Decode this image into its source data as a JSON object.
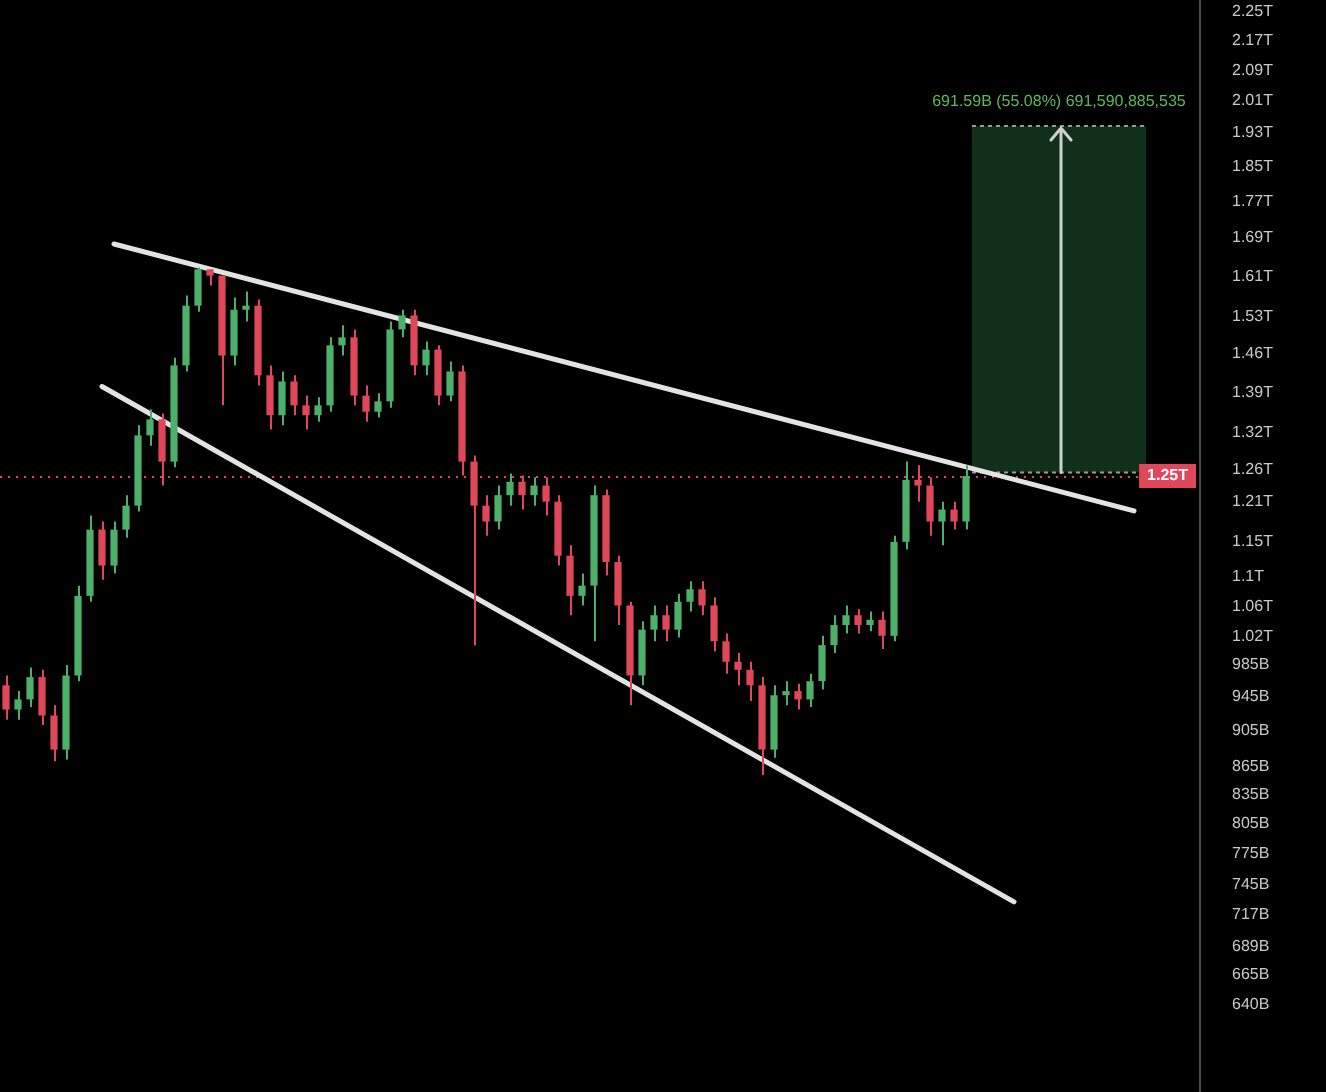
{
  "chart_data": {
    "type": "candlestick",
    "categories": [
      null,
      null,
      null,
      null,
      null,
      null,
      null,
      null,
      null,
      null,
      null,
      null,
      null,
      null,
      null,
      null,
      null,
      null,
      null,
      null,
      null,
      null,
      null,
      null,
      null,
      null,
      null,
      null,
      null,
      null,
      null,
      null,
      null,
      null,
      null,
      null,
      null,
      null,
      null,
      null,
      null,
      null,
      null,
      null,
      null,
      null,
      null,
      null,
      null,
      null,
      null,
      null,
      null,
      null,
      null,
      null,
      null,
      null,
      null,
      null,
      null,
      null,
      null,
      null,
      null,
      null,
      null,
      null,
      null,
      null,
      null,
      null,
      null,
      null,
      null,
      null,
      null,
      null,
      null,
      null,
      null,
      null,
      null,
      null,
      null,
      null,
      null,
      null,
      null,
      null,
      null,
      null,
      null,
      null,
      null,
      null,
      null,
      null,
      null,
      null
    ],
    "ohlc": [
      [
        959000000000,
        971000000000,
        918000000000,
        930000000000
      ],
      [
        930000000000,
        952000000000,
        918000000000,
        942000000000
      ],
      [
        942000000000,
        981000000000,
        933000000000,
        969000000000
      ],
      [
        969000000000,
        978000000000,
        912000000000,
        923000000000
      ],
      [
        923000000000,
        935000000000,
        871000000000,
        884000000000
      ],
      [
        884000000000,
        984000000000,
        873000000000,
        971000000000
      ],
      [
        971000000000,
        1088000000000,
        964000000000,
        1074000000000
      ],
      [
        1074000000000,
        1189000000000,
        1066000000000,
        1168000000000
      ],
      [
        1168000000000,
        1180000000000,
        1096000000000,
        1116000000000
      ],
      [
        1116000000000,
        1180000000000,
        1105000000000,
        1168000000000
      ],
      [
        1168000000000,
        1220000000000,
        1156000000000,
        1204000000000
      ],
      [
        1204000000000,
        1333000000000,
        1195000000000,
        1316000000000
      ],
      [
        1316000000000,
        1360000000000,
        1299000000000,
        1343000000000
      ],
      [
        1343000000000,
        1353000000000,
        1235000000000,
        1273000000000
      ],
      [
        1273000000000,
        1452000000000,
        1264000000000,
        1438000000000
      ],
      [
        1438000000000,
        1571000000000,
        1427000000000,
        1551000000000
      ],
      [
        1551000000000,
        1628000000000,
        1539000000000,
        1624000000000
      ],
      [
        1624000000000,
        1624000000000,
        1591000000000,
        1611000000000
      ],
      [
        1611000000000,
        1611000000000,
        1367000000000,
        1456000000000
      ],
      [
        1456000000000,
        1567000000000,
        1438000000000,
        1543000000000
      ],
      [
        1543000000000,
        1579000000000,
        1520000000000,
        1551000000000
      ],
      [
        1551000000000,
        1563000000000,
        1402000000000,
        1420000000000
      ],
      [
        1420000000000,
        1438000000000,
        1326000000000,
        1350000000000
      ],
      [
        1350000000000,
        1427000000000,
        1333000000000,
        1409000000000
      ],
      [
        1409000000000,
        1420000000000,
        1350000000000,
        1367000000000
      ],
      [
        1367000000000,
        1384000000000,
        1326000000000,
        1350000000000
      ],
      [
        1350000000000,
        1381000000000,
        1339000000000,
        1367000000000
      ],
      [
        1367000000000,
        1490000000000,
        1356000000000,
        1475000000000
      ],
      [
        1475000000000,
        1513000000000,
        1456000000000,
        1490000000000
      ],
      [
        1490000000000,
        1505000000000,
        1367000000000,
        1384000000000
      ],
      [
        1384000000000,
        1402000000000,
        1339000000000,
        1356000000000
      ],
      [
        1356000000000,
        1388000000000,
        1346000000000,
        1374000000000
      ],
      [
        1374000000000,
        1520000000000,
        1363000000000,
        1505000000000
      ],
      [
        1505000000000,
        1543000000000,
        1490000000000,
        1532000000000
      ],
      [
        1532000000000,
        1543000000000,
        1420000000000,
        1438000000000
      ],
      [
        1438000000000,
        1482000000000,
        1420000000000,
        1467000000000
      ],
      [
        1467000000000,
        1475000000000,
        1367000000000,
        1384000000000
      ],
      [
        1384000000000,
        1445000000000,
        1374000000000,
        1427000000000
      ],
      [
        1427000000000,
        1438000000000,
        1251000000000,
        1273000000000
      ],
      [
        1273000000000,
        1283000000000,
        1009000000000,
        1204000000000
      ],
      [
        1204000000000,
        1220000000000,
        1159000000000,
        1180000000000
      ],
      [
        1180000000000,
        1235000000000,
        1168000000000,
        1220000000000
      ],
      [
        1220000000000,
        1254000000000,
        1204000000000,
        1241000000000
      ],
      [
        1241000000000,
        1251000000000,
        1198000000000,
        1220000000000
      ],
      [
        1220000000000,
        1248000000000,
        1204000000000,
        1235000000000
      ],
      [
        1235000000000,
        1248000000000,
        1189000000000,
        1210000000000
      ],
      [
        1210000000000,
        1220000000000,
        1116000000000,
        1130000000000
      ],
      [
        1130000000000,
        1145000000000,
        1048000000000,
        1074000000000
      ],
      [
        1074000000000,
        1105000000000,
        1061000000000,
        1088000000000
      ],
      [
        1088000000000,
        1235000000000,
        1014000000000,
        1220000000000
      ],
      [
        1220000000000,
        1229000000000,
        1102000000000,
        1121000000000
      ],
      [
        1121000000000,
        1130000000000,
        1035000000000,
        1061000000000
      ],
      [
        1061000000000,
        1066000000000,
        935000000000,
        971000000000
      ],
      [
        971000000000,
        1040000000000,
        959000000000,
        1029000000000
      ],
      [
        1029000000000,
        1061000000000,
        1014000000000,
        1048000000000
      ],
      [
        1048000000000,
        1061000000000,
        1014000000000,
        1029000000000
      ],
      [
        1029000000000,
        1077000000000,
        1019000000000,
        1066000000000
      ],
      [
        1066000000000,
        1094000000000,
        1053000000000,
        1083000000000
      ],
      [
        1083000000000,
        1094000000000,
        1048000000000,
        1061000000000
      ],
      [
        1061000000000,
        1072000000000,
        1001000000000,
        1014000000000
      ],
      [
        1014000000000,
        1024000000000,
        973000000000,
        988000000000
      ],
      [
        988000000000,
        999000000000,
        959000000000,
        978000000000
      ],
      [
        978000000000,
        988000000000,
        940000000000,
        959000000000
      ],
      [
        959000000000,
        969000000000,
        856000000000,
        884000000000
      ],
      [
        884000000000,
        959000000000,
        875000000000,
        947000000000
      ],
      [
        947000000000,
        964000000000,
        935000000000,
        952000000000
      ],
      [
        952000000000,
        961000000000,
        930000000000,
        942000000000
      ],
      [
        942000000000,
        973000000000,
        933000000000,
        964000000000
      ],
      [
        964000000000,
        1021000000000,
        954000000000,
        1009000000000
      ],
      [
        1009000000000,
        1048000000000,
        999000000000,
        1035000000000
      ],
      [
        1035000000000,
        1061000000000,
        1024000000000,
        1048000000000
      ],
      [
        1048000000000,
        1056000000000,
        1024000000000,
        1035000000000
      ],
      [
        1035000000000,
        1053000000000,
        1027000000000,
        1042000000000
      ],
      [
        1042000000000,
        1053000000000,
        1004000000000,
        1021000000000
      ],
      [
        1021000000000,
        1159000000000,
        1014000000000,
        1150000000000
      ],
      [
        1150000000000,
        1273000000000,
        1139000000000,
        1244000000000
      ],
      [
        1244000000000,
        1267000000000,
        1210000000000,
        1235000000000
      ],
      [
        1235000000000,
        1248000000000,
        1159000000000,
        1180000000000
      ],
      [
        1180000000000,
        1210000000000,
        1145000000000,
        1198000000000
      ],
      [
        1198000000000,
        1210000000000,
        1168000000000,
        1180000000000
      ],
      [
        1180000000000,
        1267000000000,
        1168000000000,
        1250000000000
      ],
      null,
      null,
      null,
      null,
      null,
      null,
      null,
      null,
      null,
      null,
      null,
      null,
      null,
      null,
      null,
      null,
      null,
      null,
      null
    ],
    "colors": [
      "#e0475b",
      "#4caf6a",
      "#4caf6a",
      "#e0475b",
      "#e0475b",
      "#4caf6a",
      "#4caf6a",
      "#4caf6a",
      "#e0475b",
      "#4caf6a",
      "#4caf6a",
      "#4caf6a",
      "#4caf6a",
      "#e0475b",
      "#4caf6a",
      "#4caf6a",
      "#4caf6a",
      "#e0475b",
      "#e0475b",
      "#4caf6a",
      "#4caf6a",
      "#e0475b",
      "#e0475b",
      "#4caf6a",
      "#e0475b",
      "#e0475b",
      "#4caf6a",
      "#4caf6a",
      "#4caf6a",
      "#e0475b",
      "#e0475b",
      "#4caf6a",
      "#4caf6a",
      "#4caf6a",
      "#e0475b",
      "#4caf6a",
      "#e0475b",
      "#4caf6a",
      "#e0475b",
      "#e0475b",
      "#e0475b",
      "#4caf6a",
      "#4caf6a",
      "#e0475b",
      "#4caf6a",
      "#e0475b",
      "#e0475b",
      "#e0475b",
      "#4caf6a",
      "#4caf6a",
      "#e0475b",
      "#e0475b",
      "#e0475b",
      "#4caf6a",
      "#4caf6a",
      "#e0475b",
      "#4caf6a",
      "#4caf6a",
      "#e0475b",
      "#e0475b",
      "#e0475b",
      "#e0475b",
      "#e0475b",
      "#e0475b",
      "#4caf6a",
      "#4caf6a",
      "#e0475b",
      "#4caf6a",
      "#4caf6a",
      "#4caf6a",
      "#4caf6a",
      "#e0475b",
      "#4caf6a",
      "#e0475b",
      "#4caf6a",
      "#4caf6a",
      "#e0475b",
      "#e0475b",
      "#4caf6a",
      "#e0475b",
      "#4caf6a",
      null,
      null,
      null,
      null,
      null,
      null,
      null,
      null,
      null,
      null,
      null,
      null,
      null,
      null,
      null,
      null,
      null,
      null,
      null
    ],
    "series": [
      {
        "type": "line",
        "color": "#e3e3e3",
        "values": [
          null,
          null,
          null,
          null,
          null,
          null,
          null,
          null,
          null,
          1677000000000,
          null,
          null,
          null,
          null,
          null,
          null,
          null,
          null,
          null,
          null,
          null,
          null,
          null,
          null,
          null,
          null,
          null,
          null,
          null,
          null,
          null,
          null,
          null,
          null,
          null,
          null,
          null,
          null,
          null,
          null,
          null,
          null,
          null,
          null,
          null,
          null,
          null,
          null,
          null,
          null,
          null,
          null,
          null,
          null,
          null,
          null,
          null,
          null,
          null,
          null,
          null,
          null,
          null,
          null,
          null,
          null,
          null,
          null,
          null,
          null,
          null,
          null,
          null,
          null,
          null,
          null,
          null,
          null,
          null,
          null,
          null,
          null,
          null,
          null,
          null,
          null,
          null,
          null,
          null,
          null,
          null,
          null,
          null,
          null,
          1196000000000,
          null,
          null,
          null,
          null,
          null
        ]
      },
      {
        "type": "line",
        "color": "#e3e3e3",
        "values": [
          null,
          null,
          null,
          null,
          null,
          null,
          null,
          null,
          1400000000000,
          null,
          null,
          null,
          null,
          null,
          null,
          null,
          null,
          null,
          null,
          null,
          null,
          null,
          null,
          null,
          null,
          null,
          null,
          null,
          null,
          null,
          null,
          null,
          null,
          null,
          null,
          null,
          null,
          null,
          null,
          null,
          null,
          null,
          null,
          null,
          null,
          null,
          null,
          null,
          null,
          null,
          null,
          null,
          null,
          null,
          null,
          null,
          null,
          null,
          null,
          null,
          null,
          null,
          null,
          null,
          null,
          null,
          null,
          null,
          null,
          null,
          null,
          null,
          null,
          null,
          null,
          null,
          null,
          null,
          null,
          null,
          null,
          null,
          null,
          null,
          729000000000,
          null,
          null,
          null,
          null,
          null,
          null,
          null,
          null,
          null,
          null,
          null,
          null,
          null,
          null,
          null
        ]
      }
    ],
    "marker": "none",
    "log": true,
    "ylim": [
      573000000000,
      2284000000000
    ],
    "yticks": [
      {
        "value": 2250000000000,
        "label": "2.25T"
      },
      {
        "value": 2170000000000,
        "label": "2.17T"
      },
      {
        "value": 2090000000000,
        "label": "2.09T"
      },
      {
        "value": 2010000000000,
        "label": "2.01T"
      },
      {
        "value": 1930000000000,
        "label": "1.93T"
      },
      {
        "value": 1850000000000,
        "label": "1.85T"
      },
      {
        "value": 1770000000000,
        "label": "1.77T"
      },
      {
        "value": 1690000000000,
        "label": "1.69T"
      },
      {
        "value": 1610000000000,
        "label": "1.61T"
      },
      {
        "value": 1530000000000,
        "label": "1.53T"
      },
      {
        "value": 1460000000000,
        "label": "1.46T"
      },
      {
        "value": 1390000000000,
        "label": "1.39T"
      },
      {
        "value": 1320000000000,
        "label": "1.32T"
      },
      {
        "value": 1260000000000,
        "label": "1.26T"
      },
      {
        "value": 1210000000000,
        "label": "1.21T"
      },
      {
        "value": 1150000000000,
        "label": "1.15T"
      },
      {
        "value": 1100000000000,
        "label": "1.1T"
      },
      {
        "value": 1060000000000,
        "label": "1.06T"
      },
      {
        "value": 1020000000000,
        "label": "1.02T"
      },
      {
        "value": 985000000000,
        "label": "985B"
      },
      {
        "value": 945000000000,
        "label": "945B"
      },
      {
        "value": 905000000000,
        "label": "905B"
      },
      {
        "value": 865000000000,
        "label": "865B"
      },
      {
        "value": 835000000000,
        "label": "835B"
      },
      {
        "value": 805000000000,
        "label": "805B"
      },
      {
        "value": 775000000000,
        "label": "775B"
      },
      {
        "value": 745000000000,
        "label": "745B"
      },
      {
        "value": 717000000000,
        "label": "717B"
      },
      {
        "value": 689000000000,
        "label": "689B"
      },
      {
        "value": 665000000000,
        "label": "665B"
      },
      {
        "value": 640000000000,
        "label": "640B"
      }
    ],
    "tick_labels": "y",
    "ref_lines": [
      {
        "axis": "y",
        "value": 1250000000000,
        "label": "1.25T",
        "color": "#e0475b",
        "line_style": "dotted"
      }
    ],
    "bands": [
      {
        "axis": "y",
        "from": 1255600000000,
        "to": 1947200000000,
        "label": "691.59B (55.08%) 691,590,885,535",
        "color": "#11301a"
      }
    ]
  }
}
